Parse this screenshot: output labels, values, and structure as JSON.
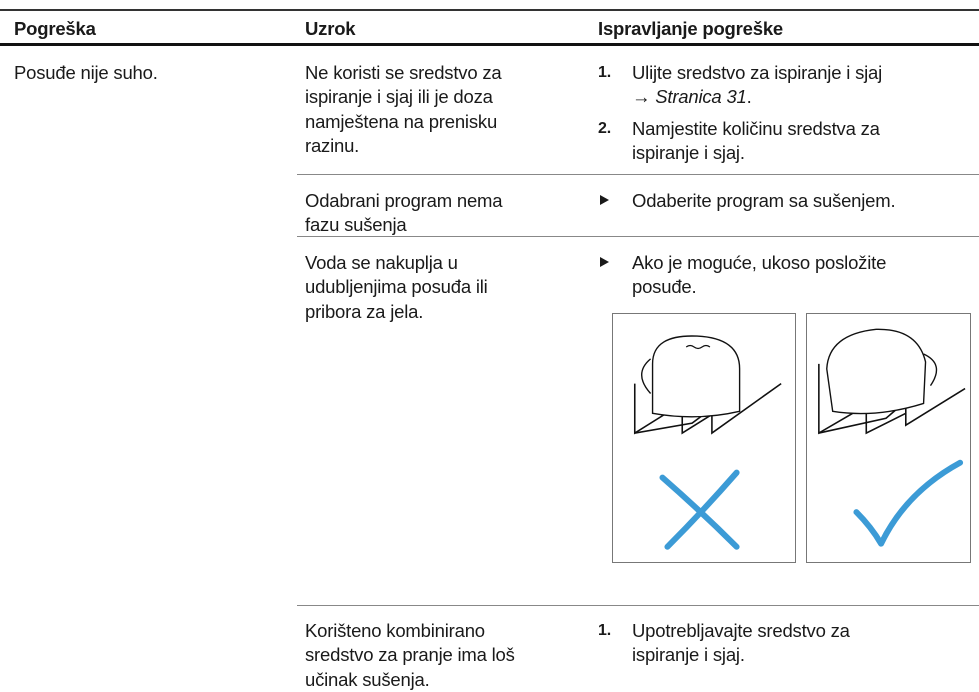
{
  "table": {
    "columns": [
      "Pogreška",
      "Uzrok",
      "Ispravljanje pogreške"
    ],
    "problem": "Posuđe nije suho.",
    "rows": [
      {
        "cause": [
          "Ne koristi se sredstvo za",
          "ispiranje i sjaj ili je doza",
          "namještena na prenisku",
          "razinu."
        ],
        "remedy": {
          "steps": [
            {
              "number": "1.",
              "lines": [
                "Ulijte sredstvo za ispiranje i sjaj"
              ],
              "ref_arrow": "→",
              "ref": "Stranica 31",
              "ref_end": "."
            },
            {
              "number": "2.",
              "lines": [
                "Namjestite količinu sredstva za",
                "ispiranje i sjaj."
              ]
            }
          ]
        }
      },
      {
        "cause": [
          "Odabrani program nema",
          "fazu sušenja"
        ],
        "remedy": {
          "bullets": [
            [
              "Odaberite program sa sušenjem."
            ]
          ]
        }
      },
      {
        "cause": [
          "Voda se nakuplja u",
          "udubljenjima posuđa ili",
          "pribora za jela."
        ],
        "remedy": {
          "bullets": [
            [
              "Ako je moguće, ukoso posložite",
              "posuđe."
            ]
          ]
        }
      },
      {
        "cause": [
          "Korišteno kombinirano",
          "sredstvo za pranje ima loš",
          "učinak sušenja."
        ],
        "remedy": {
          "steps": [
            {
              "number": "1.",
              "lines": [
                "Upotrebljavajte sredstvo za",
                "ispiranje i sjaj."
              ]
            }
          ]
        }
      }
    ]
  }
}
